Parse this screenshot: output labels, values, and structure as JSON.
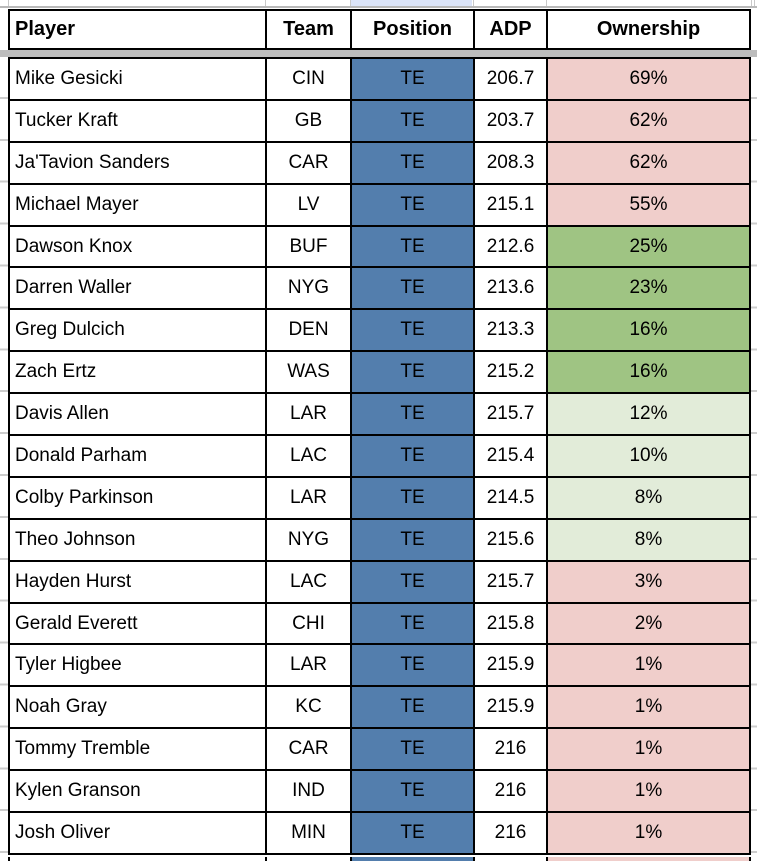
{
  "columns": [
    "Player",
    "Team",
    "Position",
    "ADP",
    "Ownership"
  ],
  "rows": [
    {
      "player": "Mike Gesicki",
      "team": "CIN",
      "position": "TE",
      "adp": "206.7",
      "ownership": "69%",
      "ownership_color": "pink"
    },
    {
      "player": "Tucker Kraft",
      "team": "GB",
      "position": "TE",
      "adp": "203.7",
      "ownership": "62%",
      "ownership_color": "pink"
    },
    {
      "player": "Ja'Tavion Sanders",
      "team": "CAR",
      "position": "TE",
      "adp": "208.3",
      "ownership": "62%",
      "ownership_color": "pink"
    },
    {
      "player": "Michael Mayer",
      "team": "LV",
      "position": "TE",
      "adp": "215.1",
      "ownership": "55%",
      "ownership_color": "pink"
    },
    {
      "player": "Dawson Knox",
      "team": "BUF",
      "position": "TE",
      "adp": "212.6",
      "ownership": "25%",
      "ownership_color": "green"
    },
    {
      "player": "Darren Waller",
      "team": "NYG",
      "position": "TE",
      "adp": "213.6",
      "ownership": "23%",
      "ownership_color": "green"
    },
    {
      "player": "Greg Dulcich",
      "team": "DEN",
      "position": "TE",
      "adp": "213.3",
      "ownership": "16%",
      "ownership_color": "green"
    },
    {
      "player": "Zach Ertz",
      "team": "WAS",
      "position": "TE",
      "adp": "215.2",
      "ownership": "16%",
      "ownership_color": "green"
    },
    {
      "player": "Davis Allen",
      "team": "LAR",
      "position": "TE",
      "adp": "215.7",
      "ownership": "12%",
      "ownership_color": "light_green"
    },
    {
      "player": "Donald Parham",
      "team": "LAC",
      "position": "TE",
      "adp": "215.4",
      "ownership": "10%",
      "ownership_color": "light_green"
    },
    {
      "player": "Colby Parkinson",
      "team": "LAR",
      "position": "TE",
      "adp": "214.5",
      "ownership": "8%",
      "ownership_color": "light_green"
    },
    {
      "player": "Theo Johnson",
      "team": "NYG",
      "position": "TE",
      "adp": "215.6",
      "ownership": "8%",
      "ownership_color": "light_green"
    },
    {
      "player": "Hayden Hurst",
      "team": "LAC",
      "position": "TE",
      "adp": "215.7",
      "ownership": "3%",
      "ownership_color": "pink"
    },
    {
      "player": "Gerald Everett",
      "team": "CHI",
      "position": "TE",
      "adp": "215.8",
      "ownership": "2%",
      "ownership_color": "pink"
    },
    {
      "player": "Tyler Higbee",
      "team": "LAR",
      "position": "TE",
      "adp": "215.9",
      "ownership": "1%",
      "ownership_color": "pink"
    },
    {
      "player": "Noah Gray",
      "team": "KC",
      "position": "TE",
      "adp": "215.9",
      "ownership": "1%",
      "ownership_color": "pink"
    },
    {
      "player": "Tommy Tremble",
      "team": "CAR",
      "position": "TE",
      "adp": "216",
      "ownership": "1%",
      "ownership_color": "pink"
    },
    {
      "player": "Kylen Granson",
      "team": "IND",
      "position": "TE",
      "adp": "216",
      "ownership": "1%",
      "ownership_color": "pink"
    },
    {
      "player": "Josh Oliver",
      "team": "MIN",
      "position": "TE",
      "adp": "216",
      "ownership": "1%",
      "ownership_color": "pink"
    }
  ],
  "colors": {
    "position_bg": "#537ead",
    "pink": "#f0cecb",
    "green": "#9fc483",
    "light_green": "#e2ecd9",
    "divider_gray": "#bdbdbd",
    "gridline_gray": "#c9c9c9",
    "highlight_blue": "#dbe4f8",
    "border_black": "#000000"
  }
}
